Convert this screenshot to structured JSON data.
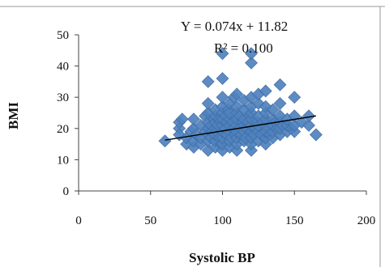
{
  "chart_data": {
    "type": "scatter",
    "title": "",
    "xlabel": "Systolic BP",
    "ylabel": "BMI",
    "xlim": [
      0,
      200
    ],
    "ylim": [
      0,
      50
    ],
    "xticks": [
      0,
      50,
      100,
      150,
      200
    ],
    "yticks": [
      0,
      10,
      20,
      30,
      40,
      50
    ],
    "grid": false,
    "legend": "none",
    "marker": "diamond",
    "marker_color": "#4f81bd",
    "trendline_color": "#000000",
    "annotations": {
      "equation": "Y = 0.074x + 11.82",
      "r_squared": "R² = 0.100"
    },
    "trendline": {
      "slope": 0.074,
      "intercept": 11.82,
      "x_range": [
        60,
        165
      ]
    },
    "series": [
      {
        "points": [
          [
            60,
            16
          ],
          [
            70,
            20
          ],
          [
            70,
            22
          ],
          [
            70,
            18
          ],
          [
            72,
            23
          ],
          [
            75,
            15
          ],
          [
            75,
            17
          ],
          [
            78,
            19
          ],
          [
            80,
            14
          ],
          [
            80,
            16
          ],
          [
            80,
            20
          ],
          [
            80,
            23
          ],
          [
            82,
            18
          ],
          [
            85,
            15
          ],
          [
            85,
            17
          ],
          [
            85,
            21
          ],
          [
            88,
            19
          ],
          [
            88,
            24
          ],
          [
            90,
            13
          ],
          [
            90,
            16
          ],
          [
            90,
            18
          ],
          [
            90,
            20
          ],
          [
            90,
            22
          ],
          [
            90,
            25
          ],
          [
            90,
            28
          ],
          [
            90,
            35
          ],
          [
            92,
            17
          ],
          [
            92,
            21
          ],
          [
            93,
            19
          ],
          [
            94,
            23
          ],
          [
            95,
            14
          ],
          [
            95,
            16
          ],
          [
            95,
            18
          ],
          [
            95,
            20
          ],
          [
            95,
            22
          ],
          [
            95,
            24
          ],
          [
            95,
            26
          ],
          [
            96,
            19
          ],
          [
            97,
            21
          ],
          [
            98,
            17
          ],
          [
            98,
            23
          ],
          [
            99,
            15
          ],
          [
            100,
            13
          ],
          [
            100,
            15
          ],
          [
            100,
            17
          ],
          [
            100,
            19
          ],
          [
            100,
            21
          ],
          [
            100,
            23
          ],
          [
            100,
            25
          ],
          [
            100,
            27
          ],
          [
            100,
            30
          ],
          [
            100,
            36
          ],
          [
            100,
            44
          ],
          [
            102,
            20
          ],
          [
            102,
            24
          ],
          [
            103,
            18
          ],
          [
            103,
            22
          ],
          [
            104,
            26
          ],
          [
            105,
            14
          ],
          [
            105,
            16
          ],
          [
            105,
            19
          ],
          [
            105,
            21
          ],
          [
            105,
            23
          ],
          [
            105,
            25
          ],
          [
            105,
            28
          ],
          [
            106,
            17
          ],
          [
            107,
            22
          ],
          [
            108,
            20
          ],
          [
            108,
            30
          ],
          [
            109,
            18
          ],
          [
            110,
            13
          ],
          [
            110,
            15
          ],
          [
            110,
            17
          ],
          [
            110,
            19
          ],
          [
            110,
            21
          ],
          [
            110,
            23
          ],
          [
            110,
            25
          ],
          [
            110,
            27
          ],
          [
            110,
            31
          ],
          [
            112,
            20
          ],
          [
            112,
            24
          ],
          [
            113,
            18
          ],
          [
            114,
            22
          ],
          [
            115,
            16
          ],
          [
            115,
            19
          ],
          [
            115,
            21
          ],
          [
            115,
            23
          ],
          [
            115,
            26
          ],
          [
            115,
            29
          ],
          [
            116,
            17
          ],
          [
            117,
            20
          ],
          [
            118,
            22
          ],
          [
            119,
            24
          ],
          [
            120,
            13
          ],
          [
            120,
            15
          ],
          [
            120,
            17
          ],
          [
            120,
            19
          ],
          [
            120,
            21
          ],
          [
            120,
            23
          ],
          [
            120,
            25
          ],
          [
            120,
            27
          ],
          [
            120,
            30
          ],
          [
            120,
            41
          ],
          [
            120,
            44
          ],
          [
            122,
            18
          ],
          [
            123,
            20
          ],
          [
            124,
            22
          ],
          [
            125,
            16
          ],
          [
            125,
            19
          ],
          [
            125,
            21
          ],
          [
            125,
            24
          ],
          [
            125,
            28
          ],
          [
            125,
            31
          ],
          [
            127,
            18
          ],
          [
            128,
            22
          ],
          [
            130,
            15
          ],
          [
            130,
            17
          ],
          [
            130,
            19
          ],
          [
            130,
            21
          ],
          [
            130,
            23
          ],
          [
            130,
            25
          ],
          [
            130,
            27
          ],
          [
            130,
            32
          ],
          [
            132,
            20
          ],
          [
            133,
            18
          ],
          [
            135,
            17
          ],
          [
            135,
            19
          ],
          [
            135,
            21
          ],
          [
            135,
            23
          ],
          [
            135,
            26
          ],
          [
            137,
            22
          ],
          [
            138,
            20
          ],
          [
            140,
            18
          ],
          [
            140,
            20
          ],
          [
            140,
            22
          ],
          [
            140,
            24
          ],
          [
            140,
            28
          ],
          [
            140,
            34
          ],
          [
            142,
            21
          ],
          [
            145,
            19
          ],
          [
            145,
            21
          ],
          [
            145,
            23
          ],
          [
            148,
            20
          ],
          [
            150,
            19
          ],
          [
            150,
            21
          ],
          [
            150,
            24
          ],
          [
            150,
            30
          ],
          [
            155,
            22
          ],
          [
            160,
            21
          ],
          [
            160,
            24
          ],
          [
            165,
            18
          ]
        ]
      }
    ]
  }
}
